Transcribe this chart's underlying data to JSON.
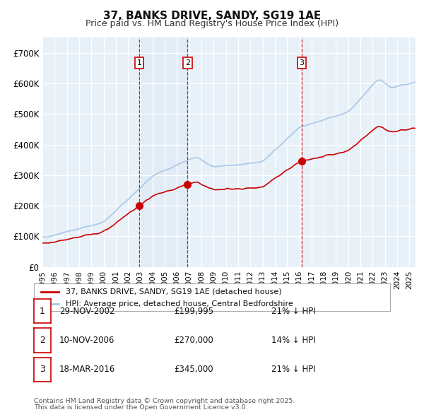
{
  "title_line1": "37, BANKS DRIVE, SANDY, SG19 1AE",
  "title_line2": "Price paid vs. HM Land Registry's House Price Index (HPI)",
  "hpi_label": "HPI: Average price, detached house, Central Bedfordshire",
  "property_label": "37, BANKS DRIVE, SANDY, SG19 1AE (detached house)",
  "hpi_color": "#a8c8e8",
  "property_color": "#cc0000",
  "background_color": "#ffffff",
  "plot_bg_color": "#e8f0f8",
  "grid_color": "#ffffff",
  "vline_color": "#cc0000",
  "ylim": [
    0,
    750000
  ],
  "yticks": [
    0,
    100000,
    200000,
    300000,
    400000,
    500000,
    600000,
    700000
  ],
  "ytick_labels": [
    "£0",
    "£100K",
    "£200K",
    "£300K",
    "£400K",
    "£500K",
    "£600K",
    "£700K"
  ],
  "xmin": 1995.0,
  "xmax": 2025.5,
  "sales": [
    {
      "num": 1,
      "date": "29-NOV-2002",
      "price": 199995,
      "price_str": "£199,995",
      "year": 2002.91,
      "pct": "21%",
      "dir": "↓"
    },
    {
      "num": 2,
      "date": "10-NOV-2006",
      "price": 270000,
      "price_str": "£270,000",
      "year": 2006.86,
      "pct": "14%",
      "dir": "↓"
    },
    {
      "num": 3,
      "date": "18-MAR-2016",
      "price": 345000,
      "price_str": "£345,000",
      "year": 2016.21,
      "pct": "21%",
      "dir": "↓"
    }
  ],
  "footnote_line1": "Contains HM Land Registry data © Crown copyright and database right 2025.",
  "footnote_line2": "This data is licensed under the Open Government Licence v3.0."
}
